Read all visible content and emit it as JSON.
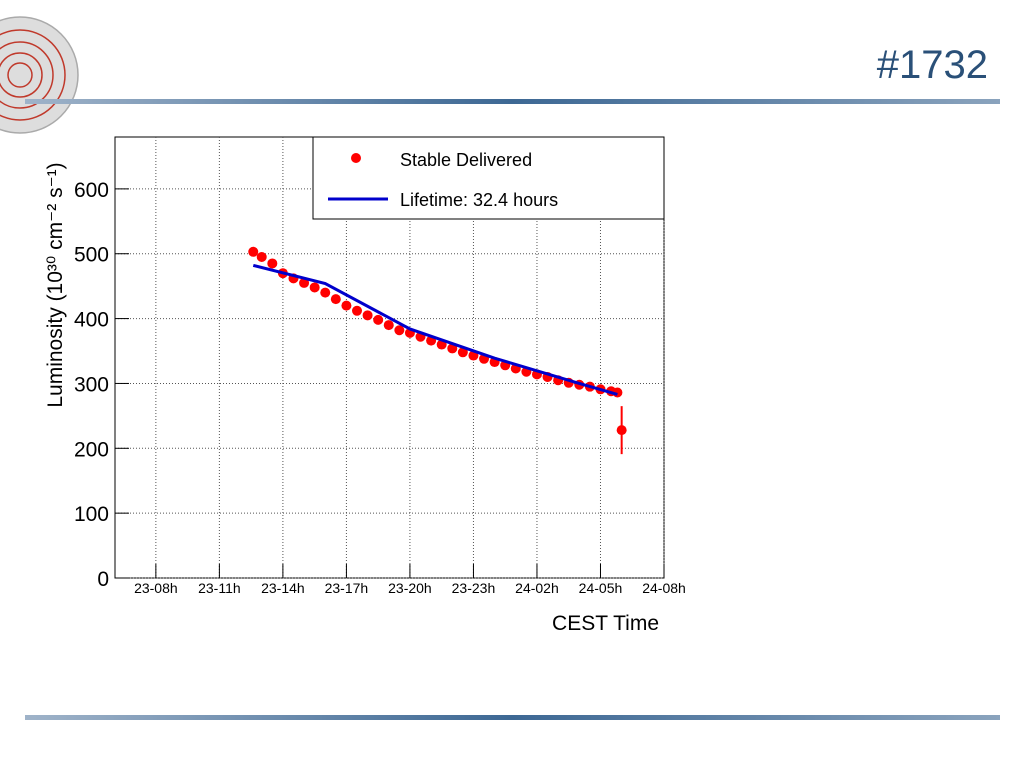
{
  "slide_title": "#1732",
  "chart_data": {
    "type": "scatter",
    "xlabel": "CEST Time",
    "ylabel": "Luminosity (10³⁰ cm⁻² s⁻¹)",
    "xlim": [
      6.07,
      32
    ],
    "ylim": [
      0,
      680
    ],
    "xticks": [
      {
        "value": 8,
        "label": "23-08h"
      },
      {
        "value": 11,
        "label": "23-11h"
      },
      {
        "value": 14,
        "label": "23-14h"
      },
      {
        "value": 17,
        "label": "23-17h"
      },
      {
        "value": 20,
        "label": "23-20h"
      },
      {
        "value": 23,
        "label": "23-23h"
      },
      {
        "value": 26,
        "label": "24-02h"
      },
      {
        "value": 29,
        "label": "24-05h"
      },
      {
        "value": 32,
        "label": "24-08h"
      }
    ],
    "yticks": [
      0,
      100,
      200,
      300,
      400,
      500,
      600
    ],
    "grid": true,
    "series": [
      {
        "name": "Stable Delivered",
        "color": "#ff0000",
        "kind": "points",
        "x": [
          12.6,
          13,
          13.5,
          14,
          14.5,
          15,
          15.5,
          16,
          16.5,
          17,
          17.5,
          18,
          18.5,
          19,
          19.5,
          20,
          20.5,
          21,
          21.5,
          22,
          22.5,
          23,
          23.5,
          24,
          24.5,
          25,
          25.5,
          26,
          26.5,
          27,
          27.5,
          28,
          28.5,
          29,
          29.5,
          29.8,
          30.0
        ],
        "values": [
          503,
          495,
          485,
          470,
          462,
          455,
          448,
          440,
          430,
          420,
          412,
          405,
          398,
          390,
          382,
          378,
          372,
          366,
          360,
          354,
          348,
          343,
          338,
          333,
          328,
          323,
          318,
          314,
          310,
          305,
          301,
          298,
          295,
          291,
          288,
          286,
          228
        ],
        "errors": [
          null,
          null,
          null,
          null,
          null,
          null,
          null,
          null,
          null,
          null,
          null,
          null,
          null,
          null,
          null,
          null,
          null,
          null,
          null,
          null,
          null,
          null,
          null,
          null,
          null,
          null,
          null,
          null,
          null,
          null,
          null,
          null,
          null,
          null,
          null,
          null,
          37
        ]
      },
      {
        "name": "Lifetime: 32.4 hours",
        "color": "#0000cc",
        "kind": "line",
        "x": [
          12.6,
          16,
          20,
          24,
          28,
          29.8
        ],
        "values": [
          482,
          454,
          384,
          339,
          300,
          283
        ]
      }
    ]
  }
}
